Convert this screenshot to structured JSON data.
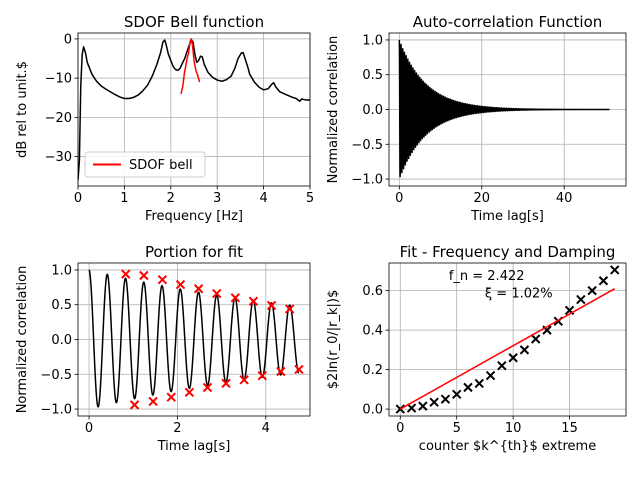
{
  "chart_data": [
    {
      "type": "line",
      "title": "SDOF Bell function",
      "xlabel": "Frequency [Hz]",
      "ylabel": "dB rel to unit.$",
      "xlim": [
        0,
        5
      ],
      "ylim": [
        -37.5,
        1.5
      ],
      "xticks": [
        "0",
        "1",
        "2",
        "3",
        "4",
        "5"
      ],
      "yticks": [
        "0",
        "−10",
        "−20",
        "−30"
      ],
      "grid": true,
      "legend": {
        "position": "lower-left",
        "entries": [
          "SDOF bell"
        ]
      },
      "series": [
        {
          "color": "#000000",
          "points": [
            [
              0,
              -36
            ],
            [
              0.03,
              -31
            ],
            [
              0.06,
              -12
            ],
            [
              0.09,
              -4
            ],
            [
              0.12,
              -2
            ],
            [
              0.16,
              -3.5
            ],
            [
              0.2,
              -6
            ],
            [
              0.3,
              -9
            ],
            [
              0.4,
              -10.8
            ],
            [
              0.5,
              -12
            ],
            [
              0.6,
              -12.8
            ],
            [
              0.7,
              -13.5
            ],
            [
              0.8,
              -14.2
            ],
            [
              0.9,
              -14.8
            ],
            [
              1.0,
              -15.2
            ],
            [
              1.1,
              -15.2
            ],
            [
              1.2,
              -14.9
            ],
            [
              1.3,
              -14.3
            ],
            [
              1.4,
              -13.2
            ],
            [
              1.5,
              -11.8
            ],
            [
              1.6,
              -9.5
            ],
            [
              1.7,
              -6.5
            ],
            [
              1.78,
              -3.5
            ],
            [
              1.83,
              -0.8
            ],
            [
              1.87,
              -0.3
            ],
            [
              1.9,
              -1.5
            ],
            [
              1.95,
              -4
            ],
            [
              2.0,
              -5.5
            ],
            [
              2.05,
              -7
            ],
            [
              2.1,
              -7.8
            ],
            [
              2.15,
              -8
            ],
            [
              2.2,
              -7.5
            ],
            [
              2.25,
              -6.2
            ],
            [
              2.3,
              -5
            ],
            [
              2.35,
              -3.2
            ],
            [
              2.4,
              -1.5
            ],
            [
              2.45,
              -0.3
            ],
            [
              2.48,
              -0.8
            ],
            [
              2.52,
              -4
            ],
            [
              2.56,
              -6
            ],
            [
              2.6,
              -5.5
            ],
            [
              2.64,
              -4.4
            ],
            [
              2.68,
              -4.6
            ],
            [
              2.72,
              -6.5
            ],
            [
              2.8,
              -8.5
            ],
            [
              2.9,
              -9.8
            ],
            [
              3.0,
              -10.5
            ],
            [
              3.1,
              -10.8
            ],
            [
              3.2,
              -10.4
            ],
            [
              3.3,
              -9.5
            ],
            [
              3.38,
              -7.5
            ],
            [
              3.45,
              -5
            ],
            [
              3.52,
              -3.6
            ],
            [
              3.56,
              -3.5
            ],
            [
              3.6,
              -5
            ],
            [
              3.66,
              -7.2
            ],
            [
              3.7,
              -9
            ],
            [
              3.8,
              -11
            ],
            [
              3.9,
              -12.3
            ],
            [
              4.0,
              -13
            ],
            [
              4.1,
              -12.7
            ],
            [
              4.18,
              -11.5
            ],
            [
              4.22,
              -11.2
            ],
            [
              4.26,
              -12.2
            ],
            [
              4.35,
              -13.5
            ],
            [
              4.5,
              -14.3
            ],
            [
              4.6,
              -14.8
            ],
            [
              4.7,
              -15.2
            ],
            [
              4.78,
              -15.9
            ],
            [
              4.82,
              -15.3
            ],
            [
              4.88,
              -15.5
            ],
            [
              4.95,
              -15.6
            ],
            [
              5.0,
              -15.5
            ]
          ]
        },
        {
          "name": "SDOF bell",
          "color": "#ff0000",
          "points": [
            [
              2.22,
              -14
            ],
            [
              2.26,
              -12
            ],
            [
              2.29,
              -9
            ],
            [
              2.32,
              -7
            ],
            [
              2.36,
              -4.5
            ],
            [
              2.38,
              -3.8
            ],
            [
              2.4,
              -2
            ],
            [
              2.42,
              -0.5
            ],
            [
              2.44,
              0
            ],
            [
              2.46,
              -1
            ],
            [
              2.48,
              -3
            ],
            [
              2.5,
              -5.5
            ],
            [
              2.54,
              -8
            ],
            [
              2.58,
              -9.3
            ],
            [
              2.62,
              -11
            ]
          ]
        }
      ]
    },
    {
      "type": "line",
      "title": "Auto-correlation Function",
      "xlabel": "Time lag[s]",
      "ylabel": "Normalized correlation",
      "xlim": [
        -2.5,
        55
      ],
      "ylim": [
        -1.1,
        1.1
      ],
      "xticks": [
        "0",
        "20",
        "40"
      ],
      "yticks": [
        "−1.0",
        "−0.5",
        "0.0",
        "0.5",
        "1.0"
      ],
      "grid": true,
      "signal": {
        "frequency_hz": 2.422,
        "damping_ratio": 0.0102,
        "duration_s": 51
      },
      "series": [
        {
          "color": "#000000"
        }
      ]
    },
    {
      "type": "line",
      "title": "Portion for fit",
      "xlabel": "Time lag[s]",
      "ylabel": "Normalized correlation",
      "xlim": [
        -0.25,
        5.0
      ],
      "ylim": [
        -1.1,
        1.1
      ],
      "xticks": [
        "0",
        "2",
        "4"
      ],
      "yticks": [
        "−1.0",
        "−0.5",
        "0.0",
        "0.5",
        "1.0"
      ],
      "grid": true,
      "signal": {
        "frequency_hz": 2.422,
        "damping_ratio": 0.0102,
        "duration_s": 4.75
      },
      "series": [
        {
          "color": "#000000"
        },
        {
          "color": "#ff0000",
          "marker": "x",
          "points": [
            [
              0.83,
              0.94
            ],
            [
              1.03,
              -0.94
            ],
            [
              1.24,
              0.92
            ],
            [
              1.45,
              -0.89
            ],
            [
              1.66,
              0.86
            ],
            [
              1.86,
              -0.83
            ],
            [
              2.07,
              0.79
            ],
            [
              2.27,
              -0.76
            ],
            [
              2.48,
              0.73
            ],
            [
              2.68,
              -0.69
            ],
            [
              2.89,
              0.66
            ],
            [
              3.1,
              -0.63
            ],
            [
              3.31,
              0.6
            ],
            [
              3.51,
              -0.58
            ],
            [
              3.72,
              0.55
            ],
            [
              3.92,
              -0.52
            ],
            [
              4.13,
              0.49
            ],
            [
              4.34,
              -0.46
            ],
            [
              4.54,
              0.44
            ],
            [
              4.75,
              -0.43
            ]
          ]
        }
      ]
    },
    {
      "type": "scatter",
      "title": "Fit - Frequency and Damping",
      "xlabel": "counter $k^{th}$ extreme",
      "ylabel": "$2ln(r_0/|r_k|)$",
      "xlim": [
        -1,
        20
      ],
      "ylim": [
        -0.035,
        0.74
      ],
      "xticks": [
        "0",
        "5",
        "10",
        "15"
      ],
      "yticks": [
        "0.0",
        "0.2",
        "0.4",
        "0.6"
      ],
      "grid": true,
      "annotations": [
        "f_n = 2.422",
        "ξ = 1.02%"
      ],
      "series": [
        {
          "color": "#000000",
          "marker": "x",
          "points": [
            [
              0,
              0
            ],
            [
              1,
              0.005
            ],
            [
              2,
              0.015
            ],
            [
              3,
              0.035
            ],
            [
              4,
              0.05
            ],
            [
              5,
              0.075
            ],
            [
              6,
              0.11
            ],
            [
              7,
              0.13
            ],
            [
              8,
              0.17
            ],
            [
              9,
              0.22
            ],
            [
              10,
              0.26
            ],
            [
              11,
              0.3
            ],
            [
              12,
              0.355
            ],
            [
              13,
              0.4
            ],
            [
              14,
              0.445
            ],
            [
              15,
              0.5
            ],
            [
              16,
              0.555
            ],
            [
              17,
              0.6
            ],
            [
              18,
              0.65
            ],
            [
              19,
              0.705
            ]
          ]
        },
        {
          "color": "#ff0000",
          "points": [
            [
              0,
              0.0
            ],
            [
              19,
              0.61
            ]
          ]
        }
      ]
    }
  ]
}
